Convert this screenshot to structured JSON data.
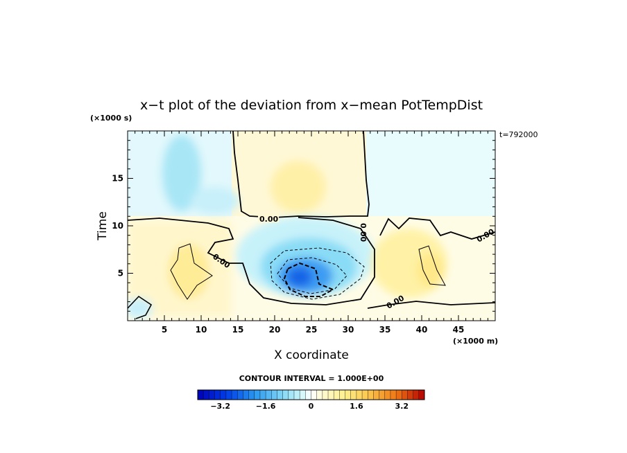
{
  "chart_data": {
    "type": "heatmap",
    "title": "x−t plot of the deviation from x−mean PotTempDist",
    "xlabel": "X coordinate",
    "ylabel": "Time",
    "x_unit": "(×1000 m)",
    "y_unit": "(×1000 s)",
    "time_label": "t=792000",
    "x_ticks": [
      "5",
      "10",
      "15",
      "20",
      "25",
      "30",
      "35",
      "40",
      "45"
    ],
    "y_ticks": [
      "5",
      "10",
      "15"
    ],
    "x_tick_values": [
      5,
      10,
      15,
      20,
      25,
      30,
      35,
      40,
      45
    ],
    "y_tick_values": [
      5,
      10,
      15
    ],
    "xlim": [
      0,
      50
    ],
    "ylim": [
      0,
      20
    ],
    "contour_interval": "CONTOUR INTERVAL = 1.000E+00",
    "contour_labels": [
      "0.00",
      "0.00",
      "0.00",
      "0.00",
      "0.00"
    ],
    "colorbar": {
      "tick_labels": [
        "−3.2",
        "−1.6",
        "0",
        "1.6",
        "3.2"
      ],
      "tick_values": [
        -3.2,
        -1.6,
        0,
        1.6,
        3.2
      ],
      "range": [
        -4.0,
        4.0
      ],
      "step": 0.2
    },
    "colors": {
      "cold_extreme": "#0000b4",
      "cold": "#1e78f0",
      "cool": "#7ad4f4",
      "cool_light": "#c8f4fa",
      "neutral": "#ffffff",
      "warm_light": "#fffad2",
      "warm": "#fff08c",
      "hot": "#f0a014",
      "hot_extreme": "#b40000"
    },
    "regions": [
      {
        "name": "upper-left cool band",
        "x": [
          0,
          13
        ],
        "y": [
          11,
          20
        ],
        "value": 0.4
      },
      {
        "name": "upper central warm band",
        "x": [
          14,
          34
        ],
        "y": [
          11,
          20
        ],
        "value": 0.3
      },
      {
        "name": "upper right cool band",
        "x": [
          33,
          50
        ],
        "y": [
          11,
          20
        ],
        "value": -0.2
      },
      {
        "name": "cold core",
        "center": [
          23.5,
          5.0
        ],
        "value": -3.2
      },
      {
        "name": "cool anomaly",
        "center": [
          24,
          6.5
        ],
        "value": -1.0
      },
      {
        "name": "warm left blob",
        "center": [
          8,
          5
        ],
        "value": 0.8
      },
      {
        "name": "warm right blob",
        "center": [
          39,
          5
        ],
        "value": 0.6
      }
    ]
  }
}
